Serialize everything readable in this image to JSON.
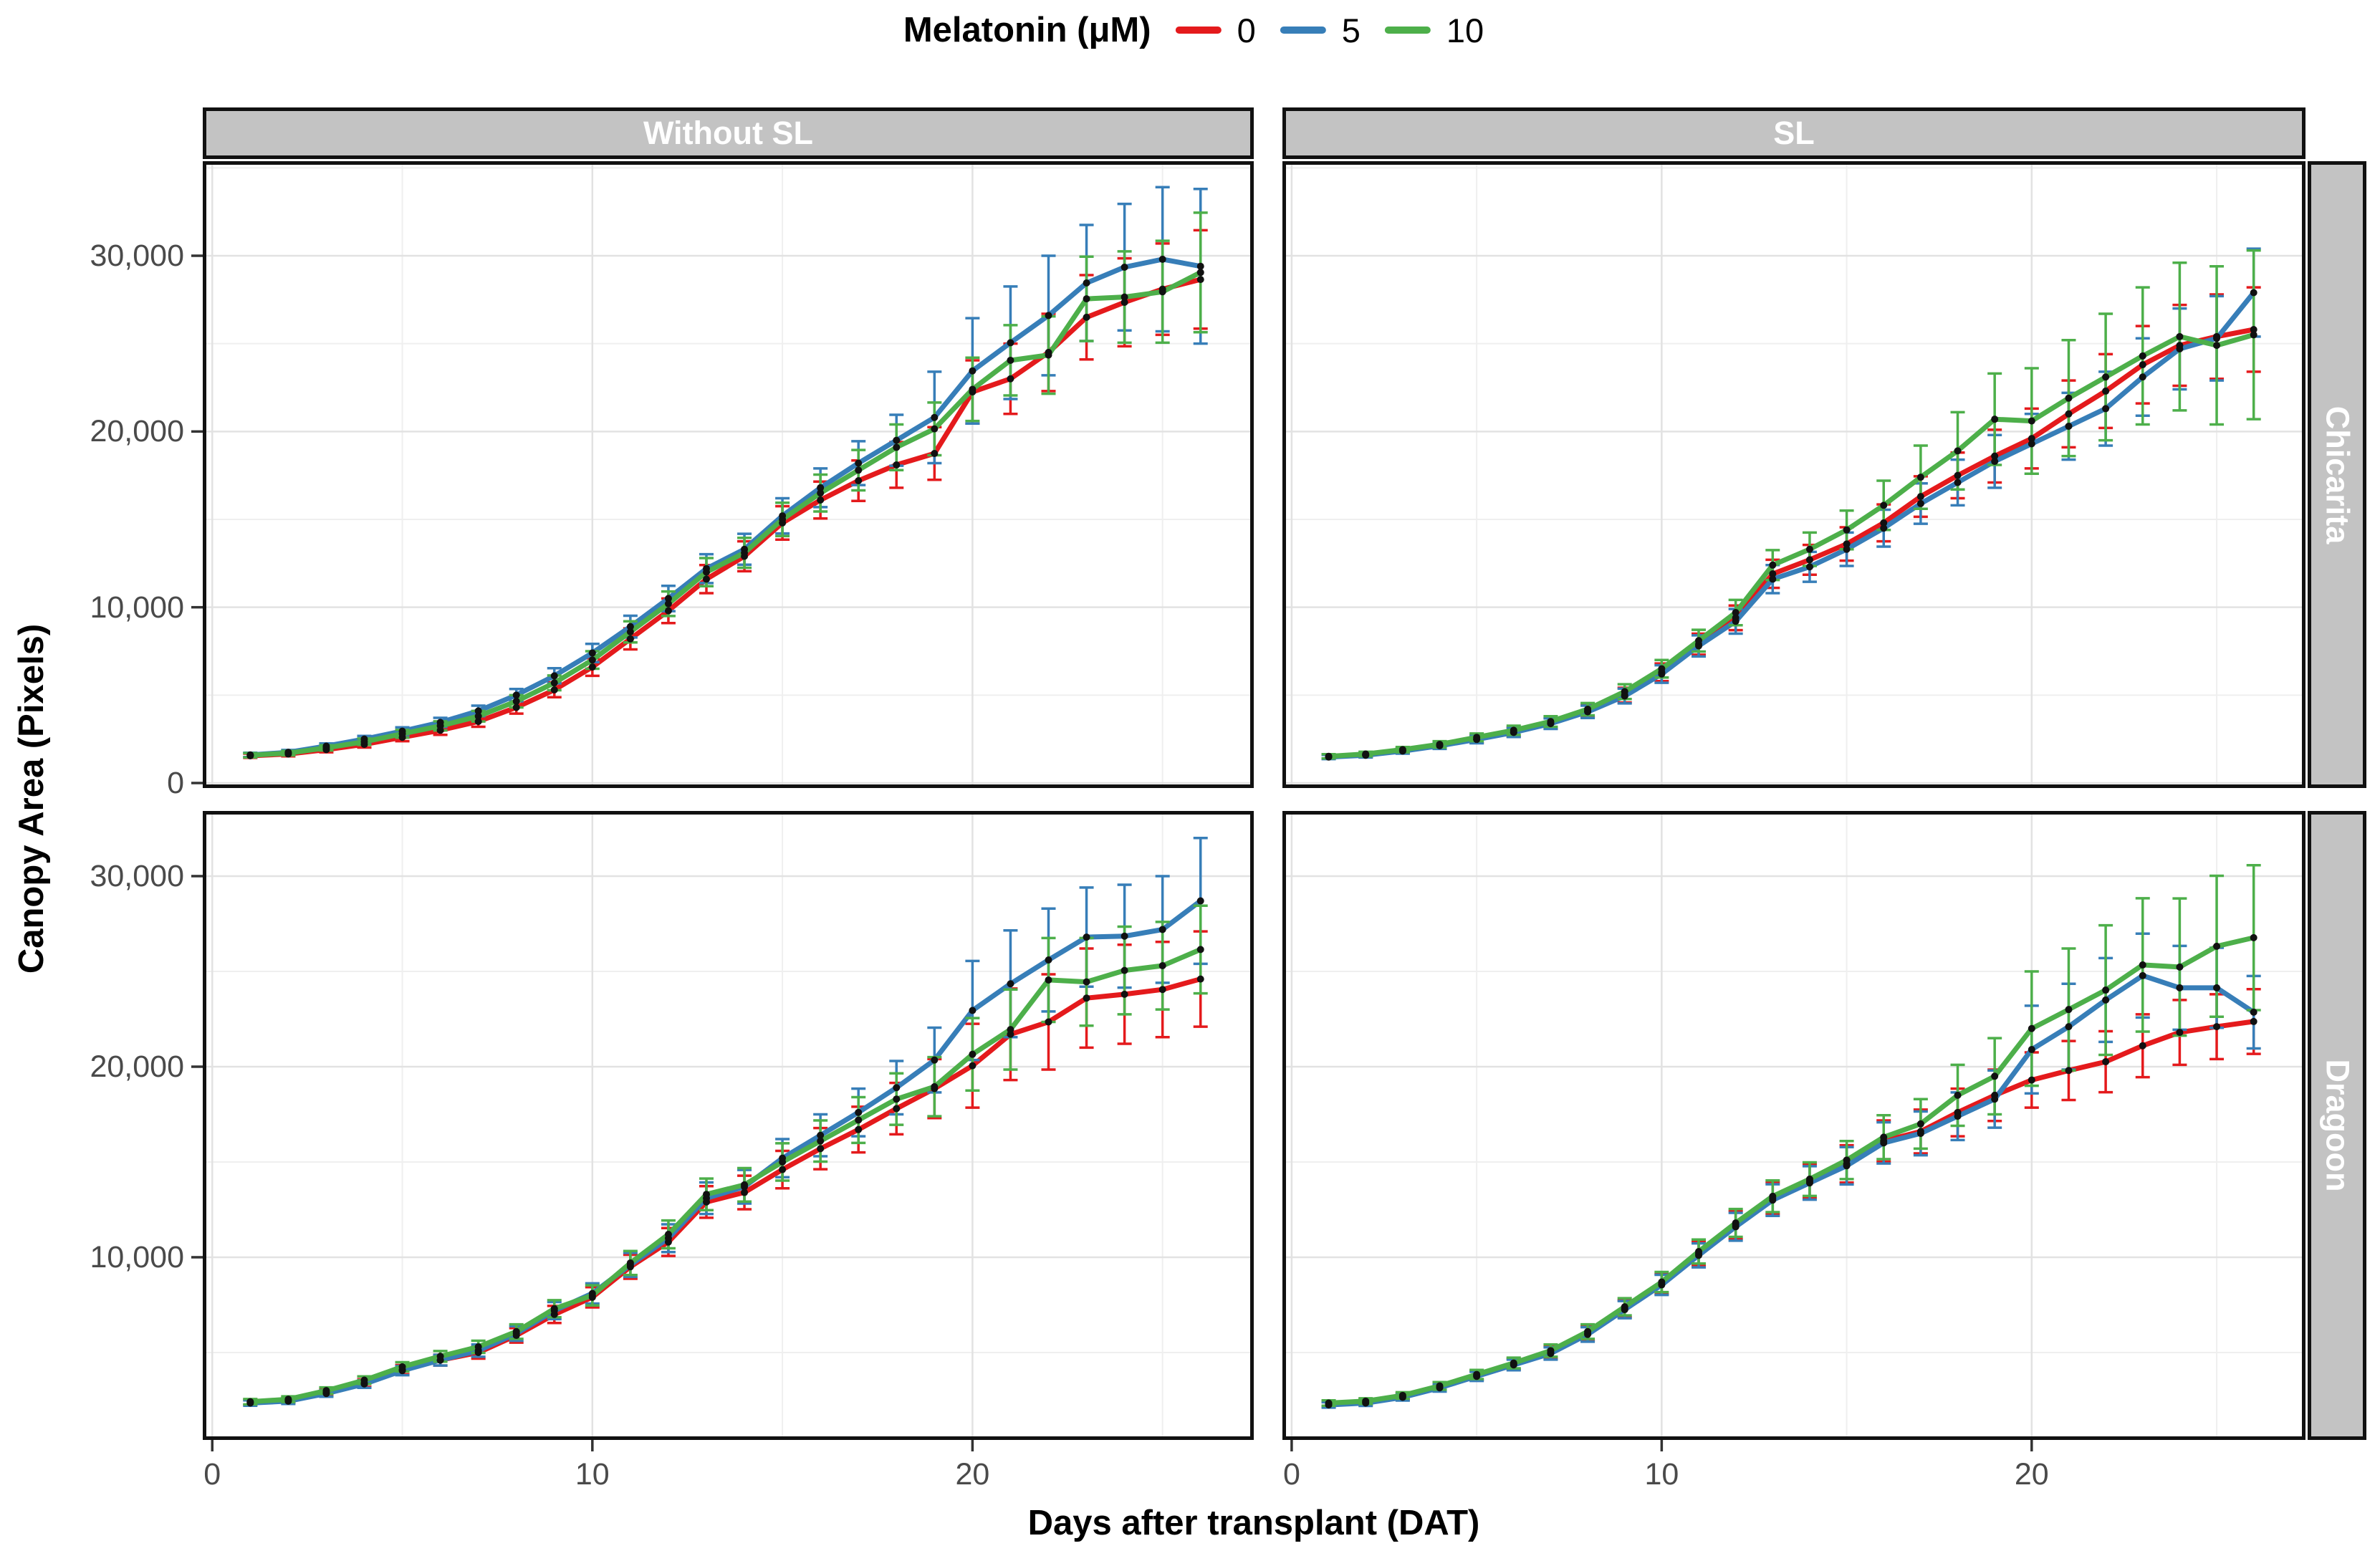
{
  "legend": {
    "title": "Melatonin (μM)",
    "items": [
      {
        "label": "0",
        "color": "#E41A1C"
      },
      {
        "label": "5",
        "color": "#377EB8"
      },
      {
        "label": "10",
        "color": "#4DAF4A"
      }
    ]
  },
  "style": {
    "series_colors": {
      "0": "#E41A1C",
      "5": "#377EB8",
      "10": "#4DAF4A"
    },
    "strip_fill": "#c3c3c3",
    "strip_text": "#ffffff",
    "panel_border": "#111111",
    "grid_major": "#e2e2e2",
    "grid_minor": "#efefef",
    "point_color": "#111111",
    "tick_color": "#333333",
    "tick_label_color": "#4a4a4a"
  },
  "chart_data": {
    "type": "line",
    "title": "",
    "xlabel": "Days after transplant (DAT)",
    "ylabel": "Canopy Area (Pixels)",
    "legend_title": "Melatonin (μM)",
    "legend_position": "top",
    "grid": true,
    "facet_cols": [
      "Without SL",
      "SL"
    ],
    "facet_rows": [
      "Chicarita",
      "Dragoon"
    ],
    "x": [
      1,
      2,
      3,
      4,
      5,
      6,
      7,
      8,
      9,
      10,
      11,
      12,
      13,
      14,
      15,
      16,
      17,
      18,
      19,
      20,
      21,
      22,
      23,
      24,
      25,
      26
    ],
    "axes": {
      "x": {
        "lim": [
          -0.25,
          27.4
        ],
        "major": [
          0,
          10,
          20
        ],
        "major_labels": [
          "0",
          "10",
          "20"
        ],
        "minor": [
          5,
          15,
          25
        ]
      },
      "rows": [
        {
          "name": "Chicarita",
          "lim": [
            -285,
            35380
          ],
          "major": [
            0,
            10000,
            20000,
            30000
          ],
          "major_labels": [
            "0",
            "10,000",
            "20,000",
            "30,000"
          ],
          "minor": [
            5000,
            15000,
            25000,
            35000
          ]
        },
        {
          "name": "Dragoon",
          "lim": [
            413,
            33420
          ],
          "major": [
            10000,
            20000,
            30000
          ],
          "major_labels": [
            "10,000",
            "20,000",
            "30,000"
          ],
          "minor": [
            5000,
            15000,
            25000
          ]
        }
      ]
    },
    "panels": [
      {
        "facet_col": "Without SL",
        "facet_row": "Chicarita",
        "series": [
          {
            "name": "0",
            "values": [
              1550,
              1650,
              1900,
              2200,
              2600,
              3000,
              3500,
              4300,
              5300,
              6600,
              8200,
              9800,
              11600,
              12900,
              14800,
              16100,
              17200,
              18100,
              18750,
              22250,
              23000,
              24500,
              26500,
              27350,
              28100,
              28650
            ],
            "err": [
              120,
              130,
              150,
              180,
              220,
              260,
              300,
              350,
              420,
              500,
              600,
              700,
              800,
              850,
              950,
              1050,
              1150,
              1300,
              1500,
              1800,
              2000,
              2200,
              2400,
              2500,
              2600,
              2800
            ]
          },
          {
            "name": "5",
            "values": [
              1600,
              1750,
              2100,
              2500,
              2950,
              3450,
              4100,
              5000,
              6100,
              7400,
              8900,
              10500,
              12200,
              13300,
              15200,
              16800,
              18200,
              19500,
              20800,
              23450,
              25050,
              26600,
              28450,
              29350,
              29800,
              29400
            ],
            "err": [
              120,
              130,
              150,
              180,
              220,
              260,
              300,
              350,
              430,
              520,
              620,
              720,
              820,
              880,
              1000,
              1100,
              1250,
              1450,
              2600,
              3000,
              3200,
              3400,
              3300,
              3600,
              4100,
              4400
            ]
          },
          {
            "name": "10",
            "values": [
              1580,
              1700,
              2000,
              2350,
              2800,
              3250,
              3800,
              4650,
              5700,
              7000,
              8600,
              10200,
              12000,
              13100,
              15000,
              16500,
              17800,
              19100,
              20150,
              22400,
              24050,
              24350,
              27550,
              27650,
              27950,
              29050
            ],
            "err": [
              120,
              130,
              150,
              180,
              220,
              260,
              300,
              350,
              420,
              500,
              600,
              700,
              800,
              850,
              950,
              1050,
              1150,
              1300,
              1500,
              1800,
              2000,
              2200,
              2400,
              2600,
              2900,
              3400
            ]
          }
        ]
      },
      {
        "facet_col": "SL",
        "facet_row": "Chicarita",
        "series": [
          {
            "name": "0",
            "values": [
              1500,
              1600,
              1850,
              2150,
              2500,
              2900,
              3400,
              4100,
              5000,
              6300,
              7900,
              9400,
              11900,
              12700,
              13600,
              14800,
              16300,
              17500,
              18600,
              19600,
              21000,
              22300,
              23800,
              24900,
              25400,
              25800
            ],
            "err": [
              120,
              130,
              150,
              180,
              220,
              260,
              300,
              350,
              420,
              500,
              600,
              700,
              800,
              850,
              950,
              1050,
              1150,
              1300,
              1500,
              1700,
              1900,
              2100,
              2200,
              2300,
              2400,
              2400
            ]
          },
          {
            "name": "5",
            "values": [
              1480,
              1580,
              1820,
              2120,
              2480,
              2880,
              3380,
              4050,
              4950,
              6200,
              7800,
              9200,
              11600,
              12300,
              13300,
              14500,
              15900,
              17100,
              18300,
              19300,
              20300,
              21300,
              23100,
              24700,
              25300,
              27900
            ],
            "err": [
              120,
              130,
              150,
              180,
              220,
              260,
              300,
              350,
              420,
              500,
              600,
              700,
              800,
              850,
              950,
              1050,
              1150,
              1300,
              1500,
              1700,
              1900,
              2100,
              2200,
              2300,
              2400,
              2500
            ]
          },
          {
            "name": "10",
            "values": [
              1520,
              1650,
              1900,
              2200,
              2600,
              3000,
              3500,
              4200,
              5200,
              6500,
              8100,
              9700,
              12400,
              13300,
              14400,
              15800,
              17400,
              18900,
              20700,
              20600,
              21900,
              23100,
              24300,
              25400,
              24900,
              25500
            ],
            "err": [
              120,
              130,
              150,
              180,
              220,
              260,
              300,
              350,
              420,
              500,
              620,
              720,
              850,
              950,
              1100,
              1400,
              1800,
              2200,
              2600,
              3000,
              3300,
              3600,
              3900,
              4200,
              4500,
              4800
            ]
          }
        ]
      },
      {
        "facet_col": "Without SL",
        "facet_row": "Dragoon",
        "series": [
          {
            "name": "0",
            "values": [
              2400,
              2500,
              2900,
              3400,
              4100,
              4600,
              5000,
              5900,
              7000,
              7900,
              9500,
              10800,
              12900,
              13400,
              14600,
              15700,
              16700,
              17800,
              18850,
              20050,
              21700,
              22350,
              23600,
              23800,
              24050,
              24600
            ],
            "err": [
              140,
              150,
              170,
              200,
              240,
              280,
              320,
              380,
              450,
              530,
              630,
              730,
              830,
              880,
              980,
              1080,
              1200,
              1350,
              1550,
              2200,
              2400,
              2500,
              2600,
              2600,
              2500,
              2500
            ]
          },
          {
            "name": "5",
            "values": [
              2350,
              2450,
              2850,
              3350,
              4050,
              4600,
              5100,
              6000,
              7200,
              8100,
              9600,
              11000,
              13100,
              13700,
              15200,
              16400,
              17600,
              18900,
              20350,
              22950,
              24350,
              25600,
              26800,
              26850,
              27200,
              28700
            ],
            "err": [
              140,
              150,
              170,
              200,
              240,
              280,
              320,
              380,
              450,
              530,
              630,
              730,
              830,
              880,
              1000,
              1100,
              1250,
              1400,
              1700,
              2600,
              2800,
              2700,
              2600,
              2700,
              2800,
              3300
            ]
          },
          {
            "name": "10",
            "values": [
              2420,
              2550,
              3000,
              3550,
              4250,
              4800,
              5300,
              6100,
              7300,
              8000,
              9700,
              11200,
              13300,
              13800,
              15000,
              16100,
              17200,
              18300,
              18950,
              20650,
              21950,
              24550,
              24450,
              25050,
              25300,
              26150
            ],
            "err": [
              140,
              150,
              170,
              200,
              240,
              280,
              320,
              380,
              450,
              530,
              630,
              730,
              830,
              880,
              980,
              1080,
              1200,
              1350,
              1550,
              1900,
              2100,
              2200,
              2300,
              2300,
              2300,
              2300
            ]
          }
        ]
      },
      {
        "facet_col": "SL",
        "facet_row": "Dragoon",
        "series": [
          {
            "name": "0",
            "values": [
              2300,
              2400,
              2700,
              3200,
              3800,
              4400,
              5000,
              6000,
              7300,
              8600,
              10200,
              11700,
              13100,
              14000,
              14900,
              16100,
              16600,
              17600,
              18500,
              19300,
              19800,
              20260,
              21100,
              21800,
              22100,
              22370
            ],
            "err": [
              140,
              150,
              170,
              200,
              240,
              280,
              320,
              380,
              450,
              530,
              630,
              730,
              830,
              880,
              980,
              1080,
              1150,
              1250,
              1350,
              1450,
              1550,
              1600,
              1650,
              1700,
              1700,
              1700
            ]
          },
          {
            "name": "5",
            "values": [
              2250,
              2350,
              2650,
              3150,
              3750,
              4350,
              4950,
              5950,
              7250,
              8550,
              10100,
              11600,
              13000,
              13900,
              14800,
              16000,
              16500,
              17400,
              18300,
              20900,
              22100,
              23500,
              24780,
              24140,
              24140,
              22860
            ],
            "err": [
              140,
              150,
              170,
              200,
              240,
              280,
              320,
              380,
              450,
              530,
              630,
              730,
              830,
              880,
              980,
              1080,
              1150,
              1250,
              1500,
              2300,
              2250,
              2200,
              2200,
              2200,
              2100,
              1900
            ]
          },
          {
            "name": "10",
            "values": [
              2350,
              2450,
              2750,
              3250,
              3850,
              4450,
              5100,
              6100,
              7400,
              8700,
              10300,
              11800,
              13200,
              14100,
              15100,
              16300,
              17000,
              18500,
              19500,
              22000,
              23000,
              24020,
              25340,
              25230,
              26320,
              26770
            ],
            "err": [
              140,
              150,
              170,
              200,
              240,
              280,
              320,
              380,
              450,
              530,
              630,
              730,
              830,
              880,
              1000,
              1150,
              1300,
              1600,
              2000,
              3000,
              3200,
              3400,
              3500,
              3600,
              3700,
              3800
            ]
          }
        ]
      }
    ]
  }
}
